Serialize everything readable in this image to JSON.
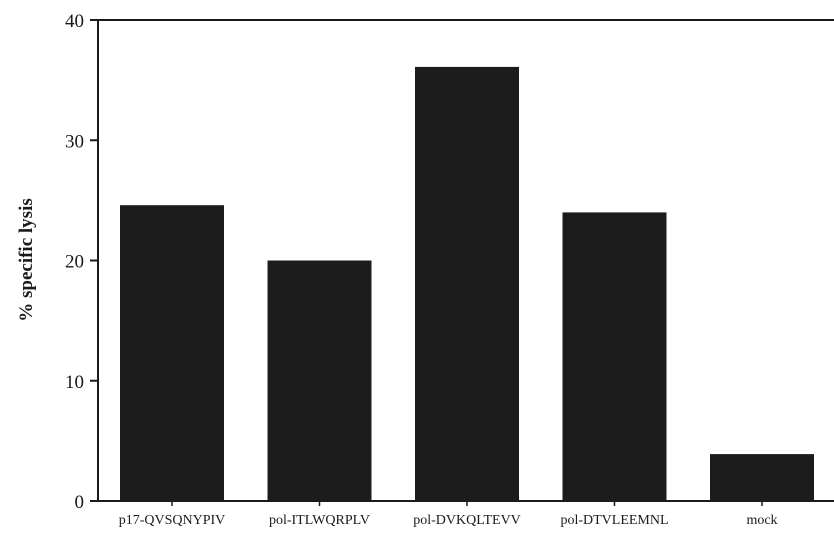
{
  "chart_data": {
    "type": "bar",
    "title": "",
    "xlabel": "",
    "ylabel": "% specific lysis",
    "categories": [
      "p17-QVSQNYPIV",
      "pol-ITLWQRPLV",
      "pol-DVKQLTEVV",
      "pol-DTVLEEMNL",
      "mock"
    ],
    "values": [
      24.6,
      20.0,
      36.1,
      24.0,
      3.9
    ],
    "ylim": [
      0,
      40
    ],
    "yticks": [
      0,
      10,
      20,
      30,
      40
    ],
    "grid": false,
    "legend": "none",
    "bar_color": "#1c1c1c",
    "axis_color": "#1a1a1a"
  }
}
